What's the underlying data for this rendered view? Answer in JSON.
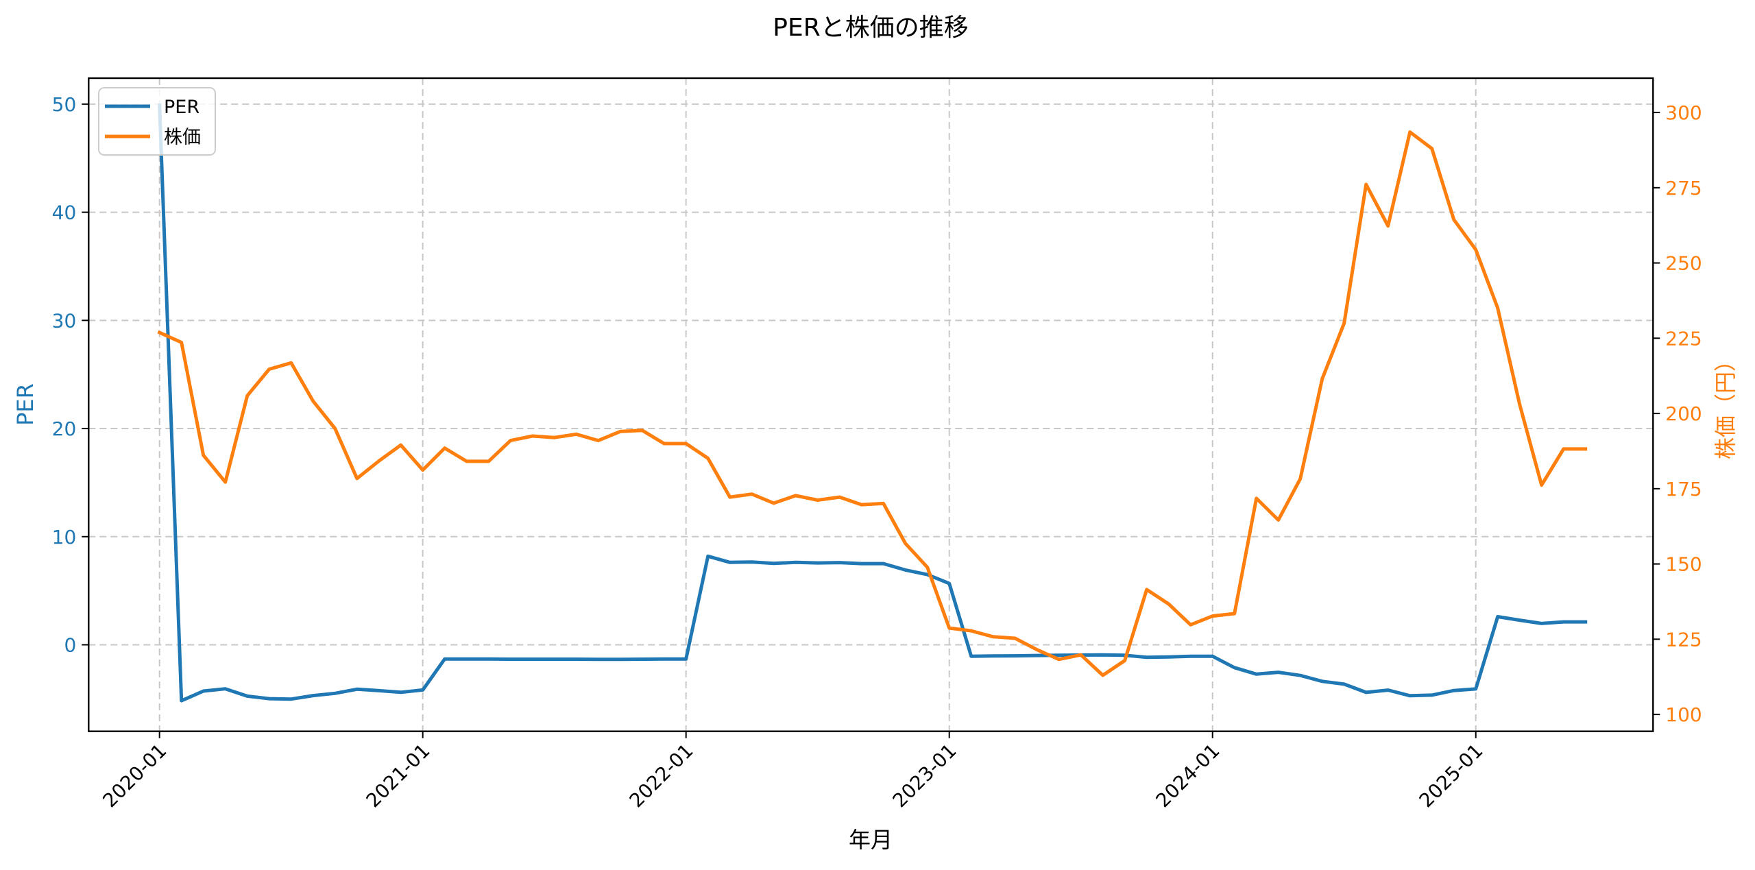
{
  "chart_data": {
    "type": "line",
    "title": "PERと株価の推移",
    "xlabel": "年月",
    "ylabel_left": "PER",
    "ylabel_right": "株価（円）",
    "x_tick_labels": [
      "2020-01",
      "2021-01",
      "2022-01",
      "2023-01",
      "2024-01",
      "2025-01"
    ],
    "x_tick_indices": [
      0,
      12,
      24,
      36,
      48,
      60
    ],
    "y_left_ticks": [
      0,
      10,
      20,
      30,
      40,
      50
    ],
    "y_right_ticks": [
      100,
      125,
      150,
      175,
      200,
      225,
      250,
      275,
      300
    ],
    "y_left_lim": [
      -8.0,
      52.4
    ],
    "y_right_lim": [
      94.4,
      311.4
    ],
    "x_index_lim": [
      -3.23,
      68.08
    ],
    "grid": true,
    "legend_position": "upper left",
    "x": [
      "2020-01",
      "2020-02",
      "2020-03",
      "2020-04",
      "2020-05",
      "2020-06",
      "2020-07",
      "2020-08",
      "2020-09",
      "2020-10",
      "2020-11",
      "2020-12",
      "2021-01",
      "2021-02",
      "2021-03",
      "2021-04",
      "2021-05",
      "2021-06",
      "2021-07",
      "2021-08",
      "2021-09",
      "2021-10",
      "2021-11",
      "2021-12",
      "2022-01",
      "2022-02",
      "2022-03",
      "2022-04",
      "2022-05",
      "2022-06",
      "2022-07",
      "2022-08",
      "2022-09",
      "2022-10",
      "2022-11",
      "2022-12",
      "2023-01",
      "2023-02",
      "2023-03",
      "2023-04",
      "2023-05",
      "2023-06",
      "2023-07",
      "2023-08",
      "2023-09",
      "2023-10",
      "2023-11",
      "2023-12",
      "2024-01",
      "2024-02",
      "2024-03",
      "2024-04",
      "2024-05",
      "2024-06",
      "2024-07",
      "2024-08",
      "2024-09",
      "2024-10",
      "2024-11",
      "2024-12",
      "2025-01",
      "2025-02",
      "2025-03",
      "2025-04",
      "2025-05",
      "2025-06"
    ],
    "series": [
      {
        "name": "PER",
        "axis": "left",
        "color": "#1f77b4",
        "values": [
          49.9,
          -5.17,
          -4.28,
          -4.07,
          -4.75,
          -4.98,
          -5.02,
          -4.7,
          -4.49,
          -4.11,
          -4.24,
          -4.39,
          -4.18,
          -1.31,
          -1.31,
          -1.32,
          -1.33,
          -1.33,
          -1.33,
          -1.33,
          -1.34,
          -1.34,
          -1.33,
          -1.32,
          -1.31,
          8.19,
          7.62,
          7.66,
          7.53,
          7.62,
          7.57,
          7.6,
          7.51,
          7.51,
          6.92,
          6.49,
          5.67,
          -1.06,
          -1.03,
          -1.02,
          -0.99,
          -0.97,
          -0.95,
          -0.93,
          -0.97,
          -1.16,
          -1.12,
          -1.06,
          -1.06,
          -2.11,
          -2.71,
          -2.54,
          -2.83,
          -3.38,
          -3.64,
          -4.4,
          -4.19,
          -4.71,
          -4.65,
          -4.23,
          -4.08,
          2.6,
          2.28,
          1.97,
          2.12,
          2.12
        ]
      },
      {
        "name": "株価",
        "axis": "right",
        "color": "#ff7f0e",
        "values": [
          226.9,
          223.6,
          186.1,
          177.2,
          205.9,
          214.7,
          216.8,
          204.1,
          195.0,
          178.4,
          184.2,
          189.5,
          181.2,
          188.5,
          184.1,
          184.1,
          191.0,
          192.5,
          192.0,
          193.1,
          191.0,
          194.0,
          194.4,
          190.0,
          190.0,
          185.1,
          172.2,
          173.2,
          170.2,
          172.7,
          171.2,
          172.2,
          169.7,
          170.1,
          156.8,
          148.9,
          128.7,
          127.8,
          125.8,
          125.3,
          121.5,
          118.3,
          119.8,
          113.0,
          117.9,
          141.5,
          136.7,
          129.8,
          132.7,
          133.5,
          171.8,
          164.6,
          178.3,
          211.5,
          230.0,
          276.1,
          262.3,
          293.5,
          288.0,
          264.4,
          254.4,
          235.0,
          203.0,
          176.2,
          188.2,
          188.2
        ]
      }
    ]
  },
  "legend": {
    "items": [
      {
        "label": "PER",
        "color": "#1f77b4"
      },
      {
        "label": "株価",
        "color": "#ff7f0e"
      }
    ]
  },
  "colors": {
    "left_axis": "#1f77b4",
    "right_axis": "#ff7f0e",
    "grid": "#c8c8c8",
    "frame": "#000000"
  }
}
